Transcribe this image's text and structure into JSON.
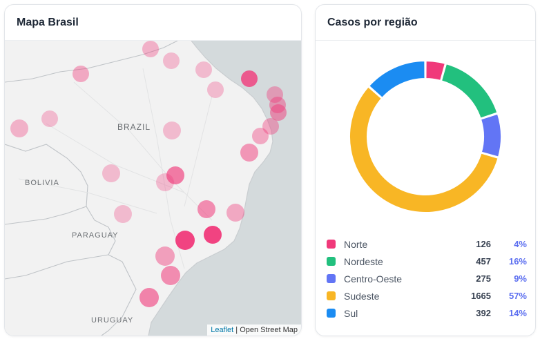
{
  "map_card": {
    "title": "Mapa Brasil",
    "labels": {
      "brazil": "BRAZIL",
      "bolivia": "BOLIVIA",
      "paraguay": "PARAGUAY",
      "uruguay": "URUGUAY"
    },
    "attribution": {
      "leaflet": "Leaflet",
      "separator": " | ",
      "osm": "Open Street Map"
    },
    "colors": {
      "land": "#f2f2f2",
      "ocean": "#d4dadc",
      "marker": "#f0397a"
    }
  },
  "chart_card": {
    "title": "Casos por região",
    "legend": [
      {
        "name": "Norte",
        "value": "126",
        "pct": "4%",
        "color": "#f0397a"
      },
      {
        "name": "Nordeste",
        "value": "457",
        "pct": "16%",
        "color": "#22c07e"
      },
      {
        "name": "Centro-Oeste",
        "value": "275",
        "pct": "9%",
        "color": "#6275f5"
      },
      {
        "name": "Sudeste",
        "value": "1665",
        "pct": "57%",
        "color": "#f8b625"
      },
      {
        "name": "Sul",
        "value": "392",
        "pct": "14%",
        "color": "#1b8cf2"
      }
    ]
  },
  "chart_data": {
    "type": "pie",
    "categories": [
      "Norte",
      "Nordeste",
      "Centro-Oeste",
      "Sudeste",
      "Sul"
    ],
    "values": [
      126,
      457,
      275,
      1665,
      392
    ],
    "colors": [
      "#f0397a",
      "#22c07e",
      "#6275f5",
      "#f8b625",
      "#1b8cf2"
    ],
    "title": "Casos por região"
  }
}
